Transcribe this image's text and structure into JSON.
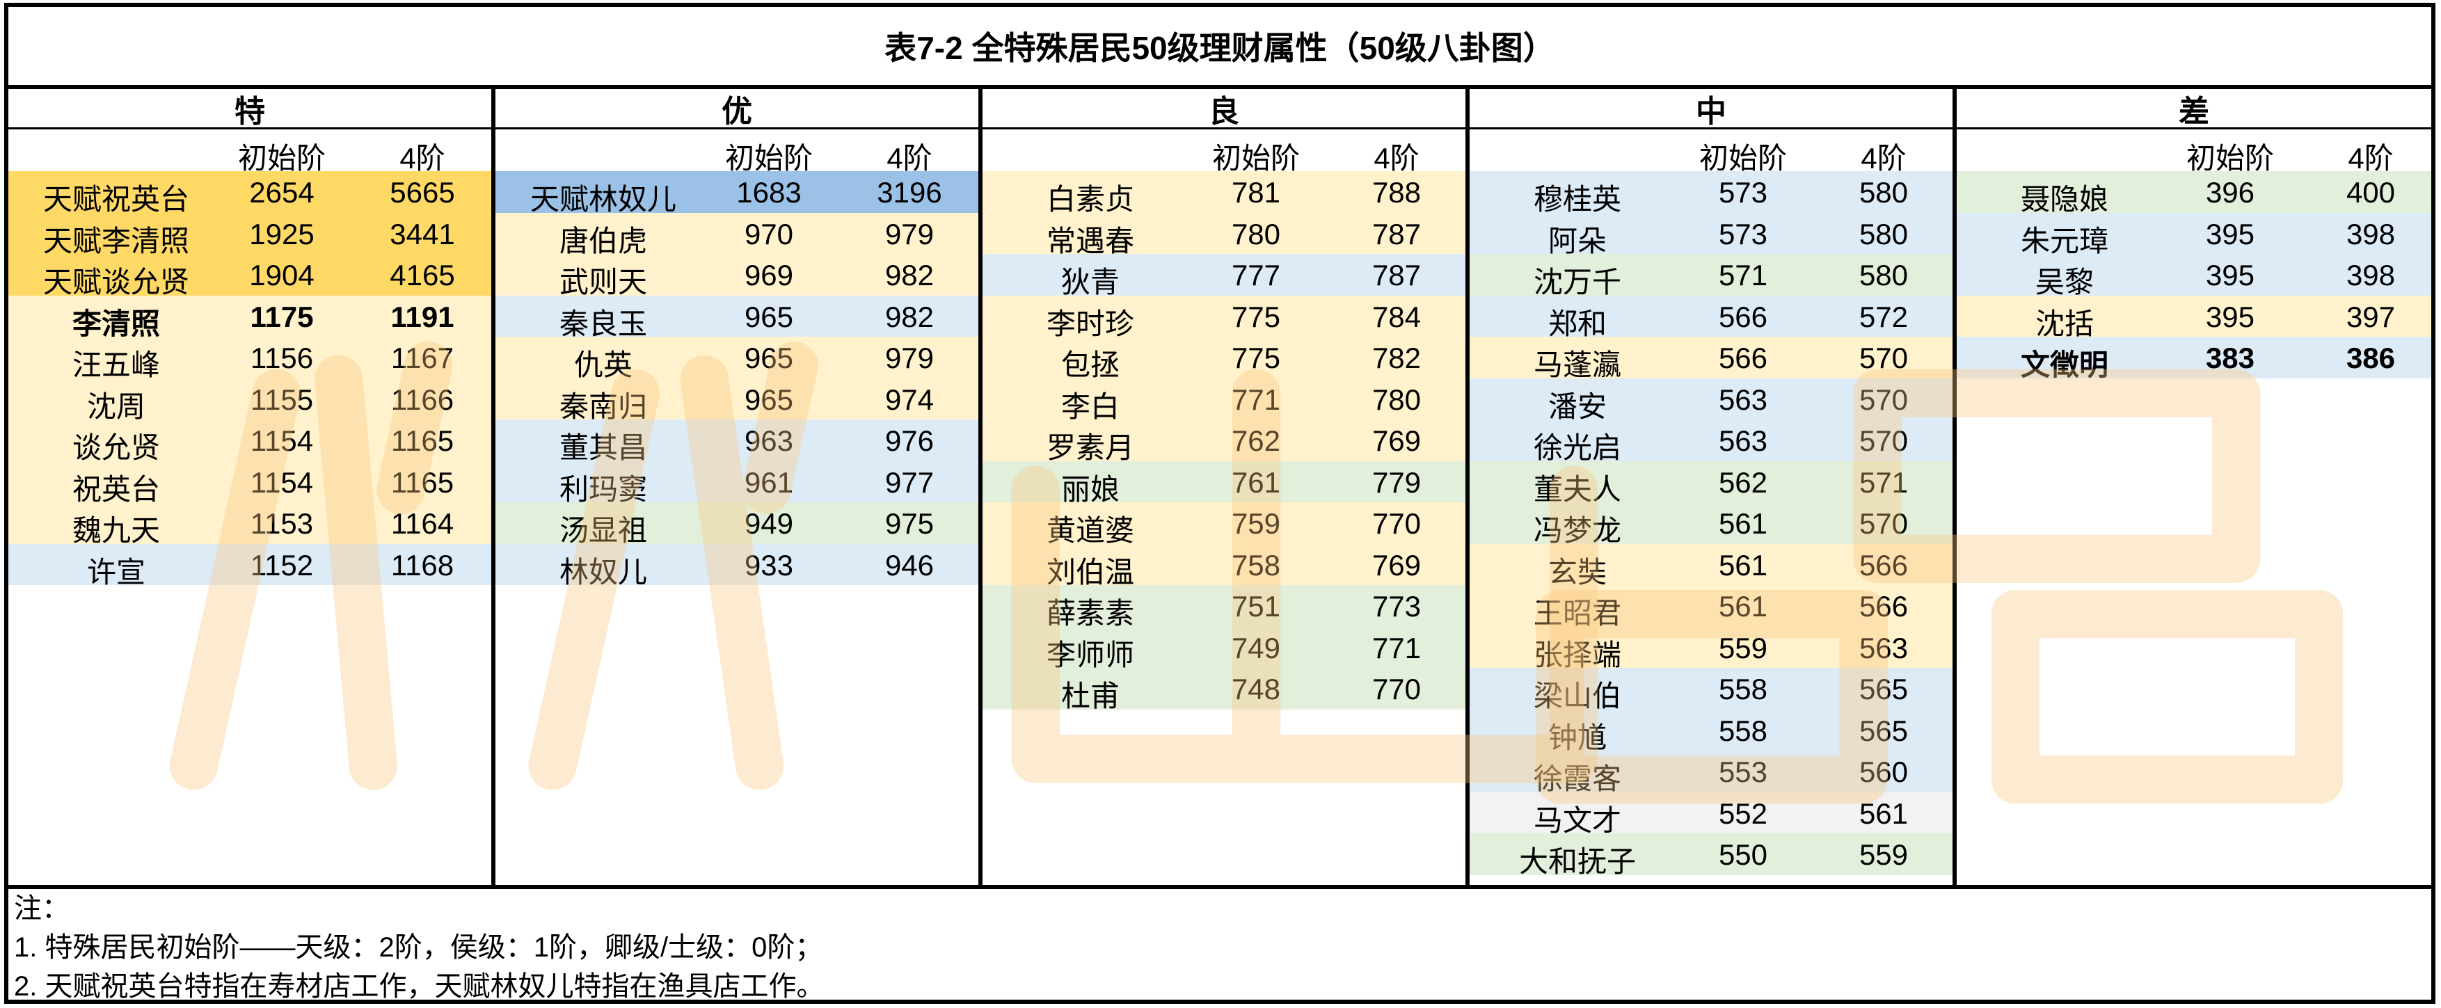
{
  "title": "表7-2 全特殊居民50级理财属性（50级八卦图）",
  "subheaders": {
    "initial": "初始阶",
    "rank4": "4阶"
  },
  "columns": [
    {
      "head": "特",
      "rows": [
        {
          "name": "天赋祝英台",
          "init": "2654",
          "r4": "5665",
          "bg": "orange"
        },
        {
          "name": "天赋李清照",
          "init": "1925",
          "r4": "3441",
          "bg": "orange"
        },
        {
          "name": "天赋谈允贤",
          "init": "1904",
          "r4": "4165",
          "bg": "orange"
        },
        {
          "name": "李清照",
          "init": "1175",
          "r4": "1191",
          "bg": "yellow",
          "bold": true
        },
        {
          "name": "汪五峰",
          "init": "1156",
          "r4": "1167",
          "bg": "yellow"
        },
        {
          "name": "沈周",
          "init": "1155",
          "r4": "1166",
          "bg": "yellow"
        },
        {
          "name": "谈允贤",
          "init": "1154",
          "r4": "1165",
          "bg": "yellow"
        },
        {
          "name": "祝英台",
          "init": "1154",
          "r4": "1165",
          "bg": "yellow"
        },
        {
          "name": "魏九天",
          "init": "1153",
          "r4": "1164",
          "bg": "yellow"
        },
        {
          "name": "许宣",
          "init": "1152",
          "r4": "1168",
          "bg": "blue"
        }
      ]
    },
    {
      "head": "优",
      "rows": [
        {
          "name": "天赋林奴儿",
          "init": "1683",
          "r4": "3196",
          "bg": "sky"
        },
        {
          "name": "唐伯虎",
          "init": "970",
          "r4": "979",
          "bg": "yellow"
        },
        {
          "name": "武则天",
          "init": "969",
          "r4": "982",
          "bg": "yellow"
        },
        {
          "name": "秦良玉",
          "init": "965",
          "r4": "982",
          "bg": "blue"
        },
        {
          "name": "仇英",
          "init": "965",
          "r4": "979",
          "bg": "yellow"
        },
        {
          "name": "秦南归",
          "init": "965",
          "r4": "974",
          "bg": "yellow"
        },
        {
          "name": "董其昌",
          "init": "963",
          "r4": "976",
          "bg": "blue"
        },
        {
          "name": "利玛窦",
          "init": "961",
          "r4": "977",
          "bg": "blue"
        },
        {
          "name": "汤显祖",
          "init": "949",
          "r4": "975",
          "bg": "green"
        },
        {
          "name": "林奴儿",
          "init": "933",
          "r4": "946",
          "bg": "blue"
        }
      ]
    },
    {
      "head": "良",
      "rows": [
        {
          "name": "白素贞",
          "init": "781",
          "r4": "788",
          "bg": "yellow"
        },
        {
          "name": "常遇春",
          "init": "780",
          "r4": "787",
          "bg": "yellow"
        },
        {
          "name": "狄青",
          "init": "777",
          "r4": "787",
          "bg": "blue"
        },
        {
          "name": "李时珍",
          "init": "775",
          "r4": "784",
          "bg": "yellow"
        },
        {
          "name": "包拯",
          "init": "775",
          "r4": "782",
          "bg": "yellow"
        },
        {
          "name": "李白",
          "init": "771",
          "r4": "780",
          "bg": "yellow"
        },
        {
          "name": "罗素月",
          "init": "762",
          "r4": "769",
          "bg": "yellow"
        },
        {
          "name": "丽娘",
          "init": "761",
          "r4": "779",
          "bg": "green"
        },
        {
          "name": "黄道婆",
          "init": "759",
          "r4": "770",
          "bg": "yellow"
        },
        {
          "name": "刘伯温",
          "init": "758",
          "r4": "769",
          "bg": "yellow"
        },
        {
          "name": "薛素素",
          "init": "751",
          "r4": "773",
          "bg": "green"
        },
        {
          "name": "李师师",
          "init": "749",
          "r4": "771",
          "bg": "green"
        },
        {
          "name": "杜甫",
          "init": "748",
          "r4": "770",
          "bg": "green"
        }
      ]
    },
    {
      "head": "中",
      "rows": [
        {
          "name": "穆桂英",
          "init": "573",
          "r4": "580",
          "bg": "blue"
        },
        {
          "name": "阿朵",
          "init": "573",
          "r4": "580",
          "bg": "blue"
        },
        {
          "name": "沈万千",
          "init": "571",
          "r4": "580",
          "bg": "green"
        },
        {
          "name": "郑和",
          "init": "566",
          "r4": "572",
          "bg": "blue"
        },
        {
          "name": "马蓬瀛",
          "init": "566",
          "r4": "570",
          "bg": "yellow"
        },
        {
          "name": "潘安",
          "init": "563",
          "r4": "570",
          "bg": "blue"
        },
        {
          "name": "徐光启",
          "init": "563",
          "r4": "570",
          "bg": "blue"
        },
        {
          "name": "董夫人",
          "init": "562",
          "r4": "571",
          "bg": "green"
        },
        {
          "name": "冯梦龙",
          "init": "561",
          "r4": "570",
          "bg": "green"
        },
        {
          "name": "玄奘",
          "init": "561",
          "r4": "566",
          "bg": "yellow"
        },
        {
          "name": "王昭君",
          "init": "561",
          "r4": "566",
          "bg": "yellow"
        },
        {
          "name": "张择端",
          "init": "559",
          "r4": "563",
          "bg": "yellow"
        },
        {
          "name": "梁山伯",
          "init": "558",
          "r4": "565",
          "bg": "blue"
        },
        {
          "name": "钟馗",
          "init": "558",
          "r4": "565",
          "bg": "blue"
        },
        {
          "name": "徐霞客",
          "init": "553",
          "r4": "560",
          "bg": "blue"
        },
        {
          "name": "马文才",
          "init": "552",
          "r4": "561",
          "bg": "gray"
        },
        {
          "name": "大和抚子",
          "init": "550",
          "r4": "559",
          "bg": "green"
        }
      ]
    },
    {
      "head": "差",
      "rows": [
        {
          "name": "聂隐娘",
          "init": "396",
          "r4": "400",
          "bg": "green"
        },
        {
          "name": "朱元璋",
          "init": "395",
          "r4": "398",
          "bg": "blue"
        },
        {
          "name": "吴黎",
          "init": "395",
          "r4": "398",
          "bg": "blue"
        },
        {
          "name": "沈括",
          "init": "395",
          "r4": "397",
          "bg": "yellow"
        },
        {
          "name": "文徵明",
          "init": "383",
          "r4": "386",
          "bg": "blue",
          "bold": true
        }
      ]
    }
  ],
  "notes": [
    "注：",
    "1. 特殊居民初始阶——天级：2阶，侯级：1阶，卿级/士级：0阶；",
    "2. 天赋祝英台特指在寿材店工作，天赋林奴儿特指在渔具店工作。"
  ],
  "watermark_text": "小八出品",
  "colors": {
    "orange": "#ffd966",
    "yellow": "#fff2cc",
    "blue": "#ddebf7",
    "green": "#e2efda",
    "gray": "#f2f2f2",
    "sky": "#9bc2e6"
  }
}
